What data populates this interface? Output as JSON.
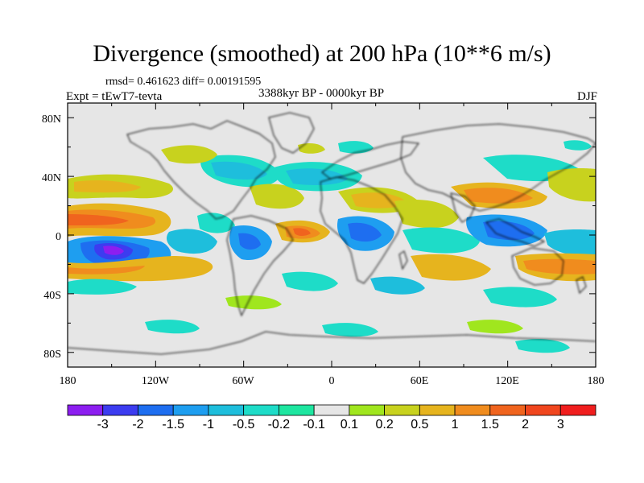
{
  "header": {
    "title": "Divergence (smoothed) at 200 hPa (10**6 m/s)",
    "stats": "rmsd= 0.461623 diff= 0.00191595",
    "experiment": "Expt = tEwT7-tevta",
    "period": "3388kyr BP - 0000kyr BP",
    "season": "DJF"
  },
  "map": {
    "lat_ticks": [
      "80N",
      "40N",
      "0",
      "40S",
      "80S"
    ],
    "lon_ticks": [
      "180",
      "120W",
      "60W",
      "0",
      "60E",
      "120E",
      "180"
    ]
  },
  "colorbar": {
    "labels": [
      "-3",
      "-2",
      "-1.5",
      "-1",
      "-0.5",
      "-0.2",
      "-0.1",
      "0.1",
      "0.2",
      "0.5",
      "1",
      "1.5",
      "2",
      "3"
    ],
    "colors": [
      "#8c1ef0",
      "#3c3cf0",
      "#1e6ef0",
      "#1e9ef0",
      "#1ebedc",
      "#1edcc8",
      "#1ee6a0",
      "#e6e6e6",
      "#a0e61e",
      "#c8d21e",
      "#e6b41e",
      "#f08c1e",
      "#f0641e",
      "#f0461e",
      "#f01e1e"
    ]
  }
}
